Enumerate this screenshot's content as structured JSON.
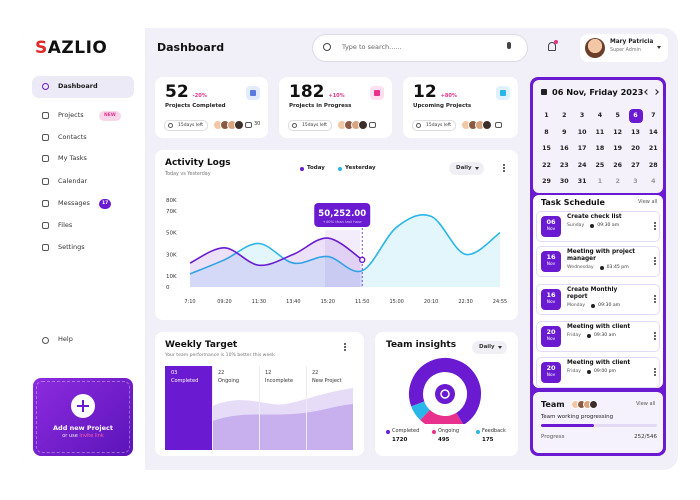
{
  "brand": "SAZLIO",
  "header": {
    "title": "Dashboard",
    "search_placeholder": "Type to search......",
    "user": {
      "name": "Mary Patricia",
      "role": "Super Admin"
    }
  },
  "sidebar": {
    "items": [
      {
        "label": "Dashboard"
      },
      {
        "label": "Projects",
        "badge": "NEW"
      },
      {
        "label": "Contacts"
      },
      {
        "label": "My Tasks"
      },
      {
        "label": "Calendar"
      },
      {
        "label": "Messages",
        "badge": "17"
      },
      {
        "label": "Files"
      },
      {
        "label": "Settings"
      }
    ],
    "help": "Help",
    "add_project": {
      "title": "Add new Project",
      "subtitle": "or use",
      "link": "invite link"
    }
  },
  "stats": [
    {
      "value": "52",
      "change": "-20%",
      "label": "Projects Completed",
      "deadline": "15days left",
      "comments": "30"
    },
    {
      "value": "182",
      "change": "+10%",
      "label": "Projects in Progress",
      "deadline": "15days left"
    },
    {
      "value": "12",
      "change": "+80%",
      "label": "Upcoming Projects",
      "deadline": "15days left"
    }
  ],
  "chart_data": [
    {
      "type": "line",
      "title": "Activity Logs",
      "subtitle": "Today vs Yesterday",
      "filter": "Daily",
      "categories": [
        "7:10",
        "09:20",
        "11:30",
        "13:40",
        "15:20",
        "11:50",
        "15:00",
        "20:10",
        "22:30",
        "24:55"
      ],
      "series": [
        {
          "name": "Today",
          "color": "#6a1bd1",
          "values": [
            22000,
            36000,
            20000,
            30000,
            45000,
            25000,
            null,
            null,
            null,
            null
          ]
        },
        {
          "name": "Yesterday",
          "color": "#29b6e8",
          "values": [
            12000,
            25000,
            40000,
            22000,
            28000,
            15000,
            55000,
            65000,
            30000,
            50000
          ]
        }
      ],
      "ylim": [
        0,
        80000
      ],
      "yticks": [
        0,
        {
          "value": 10000,
          "label": "10K"
        },
        {
          "value": 30000,
          "label": "30K"
        },
        {
          "value": 50000,
          "label": "50K"
        },
        {
          "value": 70000,
          "label": "70K"
        },
        {
          "value": 80000,
          "label": "80K"
        }
      ],
      "annotation": {
        "value": "50,252.00",
        "note": "+40% than last hour"
      }
    },
    {
      "type": "donut",
      "title": "Team insights",
      "filter": "Daily",
      "categories": [
        "Completed",
        "Ongoing",
        "Feedback"
      ],
      "values": [
        1720,
        495,
        175
      ],
      "colors": [
        "#6a1bd1",
        "#e8318c",
        "#29b6e8"
      ]
    }
  ],
  "weekly_target": {
    "title": "Weekly Target",
    "subtitle": "Your team performance is 10% better this week",
    "columns": [
      {
        "value": "03",
        "label": "Completed"
      },
      {
        "value": "22",
        "label": "Ongoing"
      },
      {
        "value": "12",
        "label": "Incomplete"
      },
      {
        "value": "22",
        "label": "New Project"
      }
    ]
  },
  "calendar": {
    "title": "06 Nov, Friday 2023",
    "days": [
      "1",
      "2",
      "3",
      "4",
      "5",
      "6",
      "7",
      "8",
      "9",
      "10",
      "11",
      "12",
      "13",
      "14",
      "15",
      "16",
      "17",
      "18",
      "19",
      "20",
      "21",
      "22",
      "23",
      "24",
      "25",
      "26",
      "27",
      "28",
      "29",
      "30",
      "31"
    ],
    "trailing_days": [
      "1",
      "2",
      "3",
      "4"
    ],
    "selected": "6"
  },
  "tasks": {
    "title": "Task Schedule",
    "view_all": "View all",
    "items": [
      {
        "day": "06",
        "month": "Nov",
        "title": "Create check list",
        "when": "Sunday",
        "time": "09:30 am"
      },
      {
        "day": "16",
        "month": "Nov",
        "title": "Meeting with project manager",
        "when": "Wednesday",
        "time": "03:45 pm"
      },
      {
        "day": "16",
        "month": "Nov",
        "title": "Create Monthly report",
        "when": "Monday",
        "time": "09:30 am"
      },
      {
        "day": "20",
        "month": "Nov",
        "title": "Meeting with client",
        "when": "Friday",
        "time": "09:30 am"
      },
      {
        "day": "20",
        "month": "Nov",
        "title": "Meeting with client",
        "when": "Friday",
        "time": "09:00 pm"
      }
    ]
  },
  "team": {
    "title": "Team",
    "view_all": "View all",
    "subtitle": "Team working progressing",
    "progress_label": "Progress",
    "progress": "252/546"
  }
}
